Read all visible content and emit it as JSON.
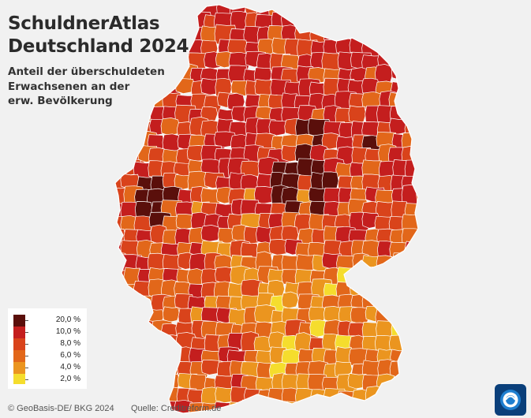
{
  "title_line1": "SchuldnerAtlas",
  "title_line2": "Deutschland 2024",
  "subtitle_line1": "Anteil der überschuldeten",
  "subtitle_line2": "Erwachsenen an der",
  "subtitle_line3": "erw. Bevölkerung",
  "legend": [
    {
      "label": "20,0 %",
      "color": "#5a0f0b"
    },
    {
      "label": "10,0 %",
      "color": "#c41e1e"
    },
    {
      "label": "8,0 %",
      "color": "#d9431b"
    },
    {
      "label": "6,0 %",
      "color": "#e2671a"
    },
    {
      "label": "4,0 %",
      "color": "#eb951f"
    },
    {
      "label": "2,0 %",
      "color": "#f5dd2d"
    }
  ],
  "footer": {
    "copyright": "© GeoBasis-DE/ BKG 2024",
    "source": "Quelle: Creditreform.de"
  },
  "logo_icon": "tagesschau-logo-icon",
  "colors": {
    "background": "#f1f1f1",
    "border": "#ffffff"
  }
}
